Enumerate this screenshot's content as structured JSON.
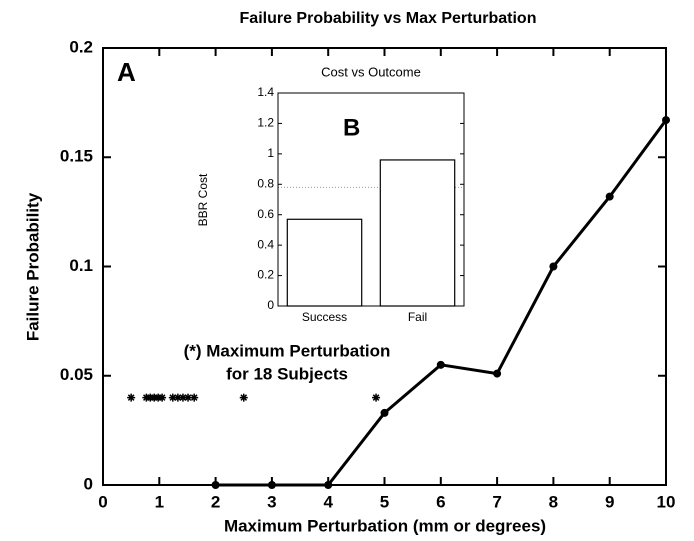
{
  "chart_data": [
    {
      "type": "line",
      "title": "Failure Probability vs Max Perturbation",
      "panel": "A",
      "xlabel": "Maximum Perturbation (mm or degrees)",
      "ylabel": "Failure Probability",
      "x": [
        2,
        3,
        4,
        5,
        6,
        7,
        8,
        9,
        10
      ],
      "series": [
        {
          "color": "#000000",
          "values": [
            0,
            0,
            0,
            0.033,
            0.055,
            0.051,
            0.1,
            0.132,
            0.167
          ]
        }
      ],
      "scatter": {
        "x": [
          0.5,
          0.77,
          0.84,
          0.91,
          0.98,
          1.05,
          1.24,
          1.33,
          1.42,
          1.51,
          1.62,
          2.5,
          4.85
        ],
        "y": [
          0.04,
          0.04,
          0.04,
          0.04,
          0.04,
          0.04,
          0.04,
          0.04,
          0.04,
          0.04,
          0.04,
          0.04,
          0.04
        ]
      },
      "annotation": [
        "(*) Maximum Perturbation",
        "for 18 Subjects"
      ],
      "xlim": [
        0,
        10
      ],
      "xticks": [
        0,
        1,
        2,
        3,
        4,
        5,
        6,
        7,
        8,
        9,
        10
      ],
      "ylim": [
        0,
        0.2
      ],
      "yticks": [
        0,
        0.05,
        0.1,
        0.15,
        0.2
      ]
    },
    {
      "type": "bar",
      "title": "Cost vs Outcome",
      "panel": "B",
      "ylabel": "BBR Cost",
      "categories": [
        "Success",
        "Fail"
      ],
      "values": [
        0.57,
        0.96
      ],
      "color": "#ffffff",
      "reference": 0.78,
      "ylim": [
        0,
        1.4
      ],
      "yticks": [
        0,
        0.2,
        0.4,
        0.6,
        0.8,
        1,
        1.2,
        1.4
      ]
    }
  ]
}
